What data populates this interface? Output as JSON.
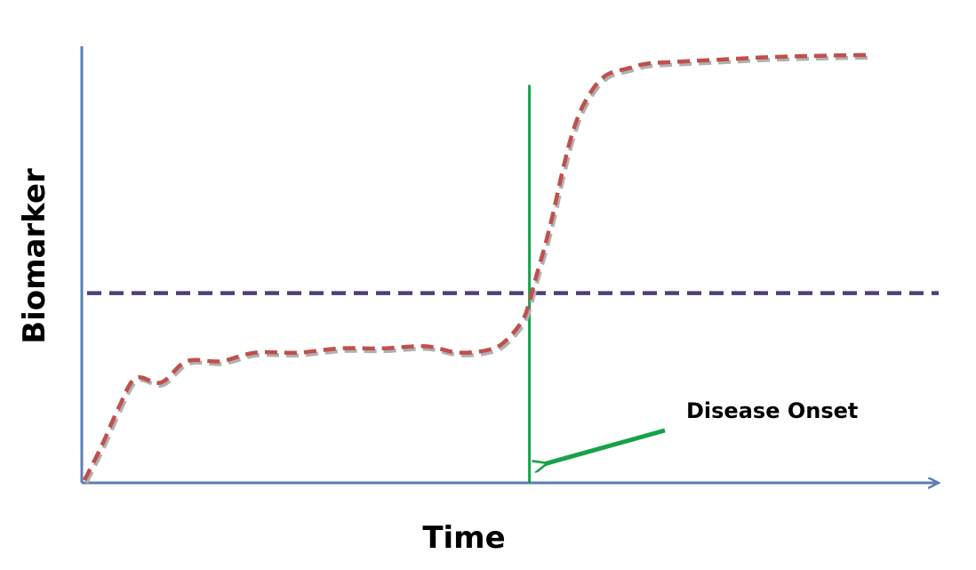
{
  "chart_data": {
    "type": "line",
    "title": "",
    "xlabel": "Time",
    "ylabel": "Biomarker",
    "xlim": [
      0,
      100
    ],
    "ylim": [
      0,
      100
    ],
    "grid": false,
    "legend": "none",
    "series": [
      {
        "style": "dashed",
        "color": "#c0504d",
        "x": [
          0,
          2,
          4,
          6,
          9,
          12,
          16,
          20,
          25,
          30,
          35,
          40,
          44,
          48,
          50,
          51.5,
          52.2,
          53,
          54,
          55,
          56,
          57,
          58,
          59,
          60,
          61,
          62,
          64,
          66,
          70,
          75,
          80,
          85,
          90,
          92
        ],
        "y": [
          0,
          8,
          17,
          24,
          23,
          28,
          28,
          30,
          30,
          31,
          31,
          31.5,
          30,
          31,
          34,
          38,
          42,
          48,
          55,
          63,
          72,
          80,
          86,
          90,
          93,
          95,
          96,
          97,
          98,
          98.5,
          99,
          99.5,
          99.8,
          100,
          100
        ]
      }
    ],
    "reference_lines": [
      {
        "orientation": "horizontal",
        "y": 44,
        "style": "dashed",
        "color": "#4f3f74"
      },
      {
        "orientation": "vertical",
        "x": 52.2,
        "style": "solid",
        "color": "#16a34a",
        "ymax": 93
      }
    ],
    "annotations": [
      {
        "text": "Disease Onset",
        "x": 74,
        "y": 17,
        "arrow_to": {
          "x": 54,
          "y": 3
        },
        "arrow_color": "#16a34a"
      }
    ]
  }
}
